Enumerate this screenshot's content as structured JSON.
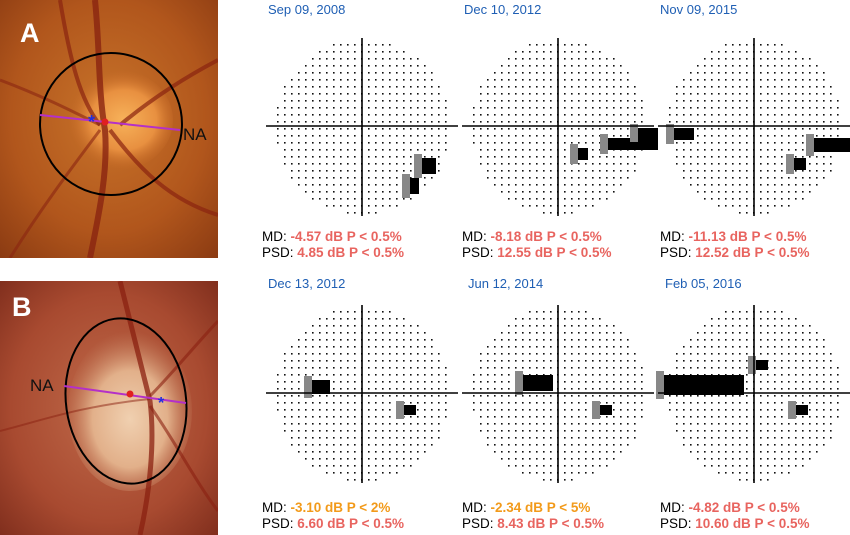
{
  "panels": [
    {
      "letter": "A",
      "marker_label": "NA"
    },
    {
      "letter": "B",
      "marker_label": "NA"
    }
  ],
  "fields": [
    {
      "date": "Sep 09, 2008",
      "md_label": "MD:",
      "md_value": "-4.57 dB P < 0.5%",
      "md_color": "#e8645f",
      "psd_label": "PSD:",
      "psd_value": "4.85 dB P < 0.5%",
      "psd_color": "#e8645f"
    },
    {
      "date": "Dec 10, 2012",
      "md_label": "MD:",
      "md_value": "-8.18 dB P < 0.5%",
      "md_color": "#e8645f",
      "psd_label": "PSD:",
      "psd_value": "12.55 dB P < 0.5%",
      "psd_color": "#e8645f"
    },
    {
      "date": "Nov 09, 2015",
      "md_label": "MD:",
      "md_value": "-11.13 dB P < 0.5%",
      "md_color": "#e8645f",
      "psd_label": "PSD:",
      "psd_value": "12.52 dB P < 0.5%",
      "psd_color": "#e8645f"
    },
    {
      "date": "Dec 13, 2012",
      "md_label": "MD:",
      "md_value": "-3.10 dB P < 2%",
      "md_color": "#f29a1a",
      "psd_label": "PSD:",
      "psd_value": "6.60 dB P < 0.5%",
      "psd_color": "#e8645f"
    },
    {
      "date": "Jun 12, 2014",
      "md_label": "MD:",
      "md_value": "-2.34 dB P < 5%",
      "md_color": "#f29a1a",
      "psd_label": "PSD:",
      "psd_value": "8.43 dB P < 0.5%",
      "psd_color": "#e8645f"
    },
    {
      "date": "Feb 05, 2016",
      "md_label": "MD:",
      "md_value": "-4.82 dB P < 0.5%",
      "md_color": "#e8645f",
      "psd_label": "PSD:",
      "psd_value": "10.60 dB P < 0.5%",
      "psd_color": "#e8645f"
    }
  ],
  "colors": {
    "date_blue": "#1f5fb4",
    "red": "#e8645f",
    "orange": "#f29a1a",
    "line_purple": "#b430c8",
    "marker_red": "#e02020",
    "marker_blue": "#2030e0"
  }
}
